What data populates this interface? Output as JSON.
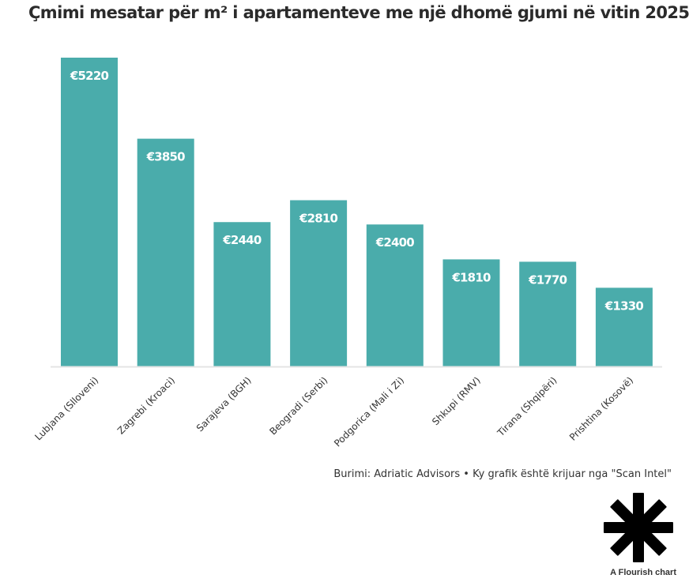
{
  "title": "Çmimi mesatar për m² i apartamenteve me një dhomë gjumi në vitin 2025",
  "source": "Burimi: Adriatic Advisors • Ky grafik është krijuar nga \"Scan Intel\"",
  "credit": "A Flourish chart",
  "logo_icon": "flourish-asterisk-icon",
  "colors": {
    "bar": "#4aacab",
    "label": "#ffffff",
    "axis": "#e4e4e4",
    "text": "#333333"
  },
  "chart_data": {
    "type": "bar",
    "categories": [
      "Lubjana (Slloveni)",
      "Zagrebi (Kroaci)",
      "Sarajeva (BGH)",
      "Beogradi (Serbi)",
      "Podgorica (Mali i Zi)",
      "Shkupi (RMV)",
      "Tirana (Shqipëri)",
      "Prishtina (Kosovë)"
    ],
    "values": [
      5220,
      3850,
      2440,
      2810,
      2400,
      1810,
      1770,
      1330
    ],
    "value_labels": [
      "€5220",
      "€3850",
      "€2440",
      "€2810",
      "€2400",
      "€1810",
      "€1770",
      "€1330"
    ],
    "ylim": [
      0,
      5220
    ],
    "grid": false,
    "legend": "none"
  }
}
